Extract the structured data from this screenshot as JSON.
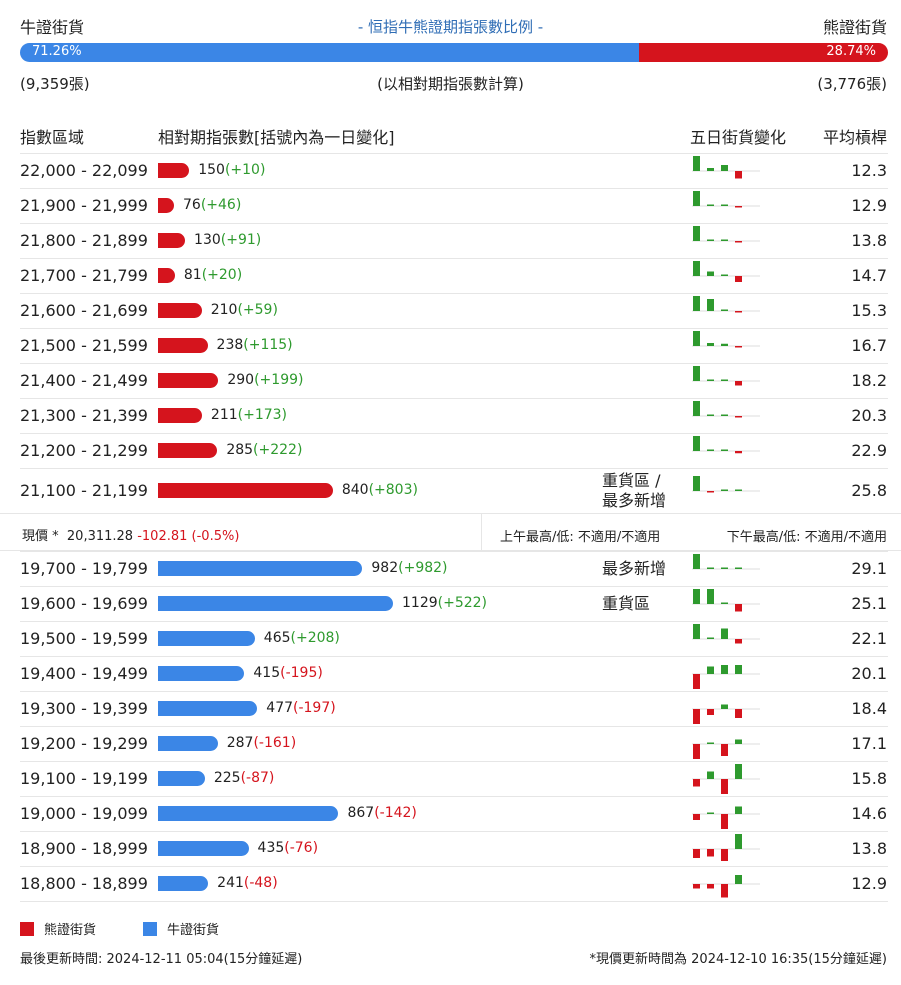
{
  "header": {
    "bull_title": "牛證街貨",
    "center_title": "- 恒指牛熊證期指張數比例 -",
    "bear_title": "熊證街貨",
    "bull_pct": "71.26%",
    "bear_pct": "28.74%",
    "bull_fraction": 0.7126,
    "bull_count": "(9,359張)",
    "calc_note": "(以相對期指張數計算)",
    "bear_count": "(3,776張)"
  },
  "columns": {
    "range": "指數區域",
    "contracts": "相對期指張數[括號內為一日變化]",
    "five_day": "五日街貨變化",
    "avg_leverage": "平均槓桿"
  },
  "colors": {
    "bear": "#d5141d",
    "bull": "#3b86e6",
    "pos": "#2e9a2e",
    "neg": "#d5141d"
  },
  "bear_rows": [
    {
      "range": "22,000 - 22,099",
      "value": 150,
      "value_label": "150",
      "change": "(+10)",
      "note": "",
      "avg": "12.3",
      "spark": [
        1,
        0.2,
        0.4,
        -0.5
      ]
    },
    {
      "range": "21,900 - 21,999",
      "value": 76,
      "value_label": "76",
      "change": "(+46)",
      "note": "",
      "avg": "12.9",
      "spark": [
        1,
        0.05,
        0.05,
        -0.05
      ]
    },
    {
      "range": "21,800 - 21,899",
      "value": 130,
      "value_label": "130",
      "change": "(+91)",
      "note": "",
      "avg": "13.8",
      "spark": [
        1,
        0.1,
        0.05,
        -0.05
      ]
    },
    {
      "range": "21,700 - 21,799",
      "value": 81,
      "value_label": "81",
      "change": "(+20)",
      "note": "",
      "avg": "14.7",
      "spark": [
        1,
        0.3,
        0.1,
        -0.4
      ]
    },
    {
      "range": "21,600 - 21,699",
      "value": 210,
      "value_label": "210",
      "change": "(+59)",
      "note": "",
      "avg": "15.3",
      "spark": [
        1,
        0.8,
        0.05,
        -0.1
      ]
    },
    {
      "range": "21,500 - 21,599",
      "value": 238,
      "value_label": "238",
      "change": "(+115)",
      "note": "",
      "avg": "16.7",
      "spark": [
        1,
        0.2,
        0.15,
        -0.05
      ]
    },
    {
      "range": "21,400 - 21,499",
      "value": 290,
      "value_label": "290",
      "change": "(+199)",
      "note": "",
      "avg": "18.2",
      "spark": [
        1,
        0.1,
        0.1,
        -0.3
      ]
    },
    {
      "range": "21,300 - 21,399",
      "value": 211,
      "value_label": "211",
      "change": "(+173)",
      "note": "",
      "avg": "20.3",
      "spark": [
        1,
        0.05,
        0.05,
        -0.05
      ]
    },
    {
      "range": "21,200 - 21,299",
      "value": 285,
      "value_label": "285",
      "change": "(+222)",
      "note": "",
      "avg": "22.9",
      "spark": [
        1,
        0.1,
        0.05,
        -0.15
      ]
    },
    {
      "range": "21,100 - 21,199",
      "value": 840,
      "value_label": "840",
      "change": "(+803)",
      "note": "重貨區 /\n最多新增",
      "avg": "25.8",
      "spark": [
        1,
        -0.05,
        0.05,
        0.05
      ]
    }
  ],
  "price_strip": {
    "label": "現價 *",
    "price": "20,311.28",
    "change": "-102.81 (-0.5%)",
    "am": "上午最高/低: 不適用/不適用",
    "pm": "下午最高/低: 不適用/不適用"
  },
  "bull_rows": [
    {
      "range": "19,700 - 19,799",
      "value": 982,
      "value_label": "982",
      "change": "(+982)",
      "note": "最多新增",
      "avg": "29.1",
      "spark": [
        1,
        0,
        0,
        0
      ]
    },
    {
      "range": "19,600 - 19,699",
      "value": 1129,
      "value_label": "1129",
      "change": "(+522)",
      "note": "重貨區",
      "avg": "25.1",
      "spark": [
        1,
        1,
        0,
        -0.5
      ]
    },
    {
      "range": "19,500 - 19,599",
      "value": 465,
      "value_label": "465",
      "change": "(+208)",
      "note": "",
      "avg": "22.1",
      "spark": [
        1,
        0.1,
        0.7,
        -0.3
      ]
    },
    {
      "range": "19,400 - 19,499",
      "value": 415,
      "value_label": "415",
      "change": "(-195)",
      "note": "",
      "avg": "20.1",
      "spark": [
        -1,
        0.5,
        0.6,
        0.6
      ]
    },
    {
      "range": "19,300 - 19,399",
      "value": 477,
      "value_label": "477",
      "change": "(-197)",
      "note": "",
      "avg": "18.4",
      "spark": [
        -1,
        -0.4,
        0.3,
        -0.6
      ]
    },
    {
      "range": "19,200 - 19,299",
      "value": 287,
      "value_label": "287",
      "change": "(-161)",
      "note": "",
      "avg": "17.1",
      "spark": [
        -1,
        0.1,
        -0.8,
        0.3
      ]
    },
    {
      "range": "19,100 - 19,199",
      "value": 225,
      "value_label": "225",
      "change": "(-87)",
      "note": "",
      "avg": "15.8",
      "spark": [
        -0.5,
        0.5,
        -1,
        1
      ]
    },
    {
      "range": "19,000 - 19,099",
      "value": 867,
      "value_label": "867",
      "change": "(-142)",
      "note": "",
      "avg": "14.6",
      "spark": [
        -0.4,
        0.1,
        -1,
        0.5
      ]
    },
    {
      "range": "18,900 - 18,999",
      "value": 435,
      "value_label": "435",
      "change": "(-76)",
      "note": "",
      "avg": "13.8",
      "spark": [
        -0.6,
        -0.5,
        -0.8,
        1
      ]
    },
    {
      "range": "18,800 - 18,899",
      "value": 241,
      "value_label": "241",
      "change": "(-48)",
      "note": "",
      "avg": "12.9",
      "spark": [
        -0.3,
        -0.3,
        -0.9,
        0.6
      ]
    }
  ],
  "legend": {
    "bear": "熊證街貨",
    "bull": "牛證街貨"
  },
  "footer": {
    "left": "最後更新時間: 2024-12-11 05:04(15分鐘延遲)",
    "right": "*現價更新時間為 2024-12-10 16:35(15分鐘延遲)"
  }
}
